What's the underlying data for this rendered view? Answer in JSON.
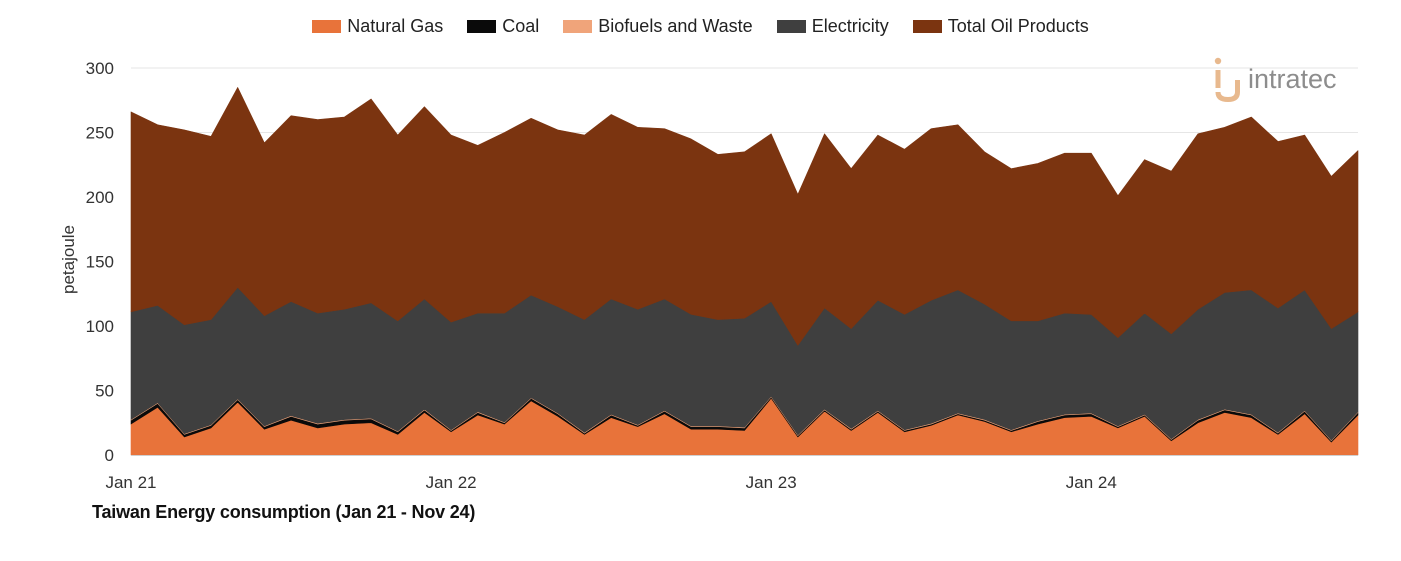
{
  "chart_data": {
    "type": "area",
    "stacked": true,
    "caption": "Taiwan Energy consumption (Jan 21 - Nov 24)",
    "ylabel": "petajoule",
    "ylim": [
      0,
      300
    ],
    "yticks": [
      0,
      50,
      100,
      150,
      200,
      250,
      300
    ],
    "x_tick_labels": [
      {
        "label": "Jan 21",
        "index": 0
      },
      {
        "label": "Jan 22",
        "index": 12
      },
      {
        "label": "Jan 23",
        "index": 24
      },
      {
        "label": "Jan 24",
        "index": 36
      }
    ],
    "grid": "horizontal",
    "legend": "top",
    "x": [
      "Jan 21",
      "Feb 21",
      "Mar 21",
      "Apr 21",
      "May 21",
      "Jun 21",
      "Jul 21",
      "Aug 21",
      "Sep 21",
      "Oct 21",
      "Nov 21",
      "Dec 21",
      "Jan 22",
      "Feb 22",
      "Mar 22",
      "Apr 22",
      "May 22",
      "Jun 22",
      "Jul 22",
      "Aug 22",
      "Sep 22",
      "Oct 22",
      "Nov 22",
      "Dec 22",
      "Jan 23",
      "Feb 23",
      "Mar 23",
      "Apr 23",
      "May 23",
      "Jun 23",
      "Jul 23",
      "Aug 23",
      "Sep 23",
      "Oct 23",
      "Nov 23",
      "Dec 23",
      "Jan 24",
      "Feb 24",
      "Mar 24",
      "Apr 24",
      "May 24",
      "Jun 24",
      "Jul 24",
      "Aug 24",
      "Sep 24",
      "Oct 24",
      "Nov 24"
    ],
    "series": [
      {
        "name": "Natural Gas",
        "color": "#e8733a",
        "values": [
          24,
          37,
          14,
          21,
          41,
          20,
          27,
          21,
          24,
          25,
          16,
          33,
          18,
          31,
          24,
          42,
          30,
          16,
          29,
          22,
          32,
          20,
          20,
          19,
          44,
          14,
          34,
          19,
          33,
          18,
          23,
          31,
          26,
          18,
          24,
          29,
          30,
          21,
          30,
          11,
          25,
          33,
          29,
          16,
          32,
          10,
          31
        ]
      },
      {
        "name": "Coal",
        "color": "#0a0a0a",
        "values": [
          3,
          3,
          2,
          2,
          2,
          2,
          3,
          3,
          3,
          3,
          2,
          2,
          1,
          2,
          1,
          2,
          2,
          1,
          2,
          1,
          2,
          2,
          2,
          2,
          1,
          1,
          1,
          1,
          1,
          1,
          1,
          1,
          1,
          1,
          2,
          2,
          2,
          1,
          1,
          1,
          2,
          2,
          2,
          1,
          2,
          1,
          2
        ]
      },
      {
        "name": "Biofuels and Waste",
        "color": "#f0a47a",
        "values": [
          0.5,
          0.5,
          0.5,
          0.5,
          0.5,
          0.5,
          0.5,
          0.5,
          0.5,
          0.5,
          0.5,
          0.5,
          0.5,
          0.5,
          0.5,
          0.5,
          0.5,
          0.5,
          0.5,
          0.5,
          0.5,
          0.5,
          0.5,
          0.5,
          0.5,
          0.5,
          0.5,
          0.5,
          0.5,
          0.5,
          0.5,
          0.5,
          0.5,
          0.5,
          0.5,
          0.5,
          0.5,
          0.5,
          0.5,
          0.5,
          0.5,
          0.5,
          0.5,
          0.5,
          0.5,
          0.5,
          0.5
        ]
      },
      {
        "name": "Electricity",
        "color": "#3f3f3f",
        "values": [
          83.5,
          75.5,
          84.5,
          81.5,
          86.5,
          85.5,
          88.5,
          85.5,
          85.5,
          89.5,
          85.5,
          85.5,
          83.5,
          76.5,
          84.5,
          79.5,
          82.5,
          87.5,
          89.5,
          89.5,
          86.5,
          86.5,
          82.5,
          84.5,
          73.5,
          69.5,
          78.5,
          77.5,
          85.5,
          89.5,
          95.5,
          95.5,
          89.5,
          84.5,
          77.5,
          78.5,
          76.5,
          68.5,
          78.5,
          81.5,
          85.5,
          90.5,
          96.5,
          96.5,
          93.5,
          86.5,
          77.5
        ]
      },
      {
        "name": "Total Oil Products",
        "color": "#7b3410",
        "values": [
          155,
          140,
          151,
          142,
          155,
          134,
          144,
          150,
          149,
          158,
          144,
          149,
          145,
          130,
          140,
          137,
          137,
          143,
          143,
          141,
          132,
          136,
          128,
          129,
          130,
          117,
          135,
          124,
          128,
          128,
          133,
          128,
          118,
          118,
          122,
          124,
          125,
          110,
          119,
          126,
          136,
          128,
          134,
          129,
          120,
          118,
          125
        ]
      }
    ]
  },
  "logo": {
    "text": "intratec"
  }
}
